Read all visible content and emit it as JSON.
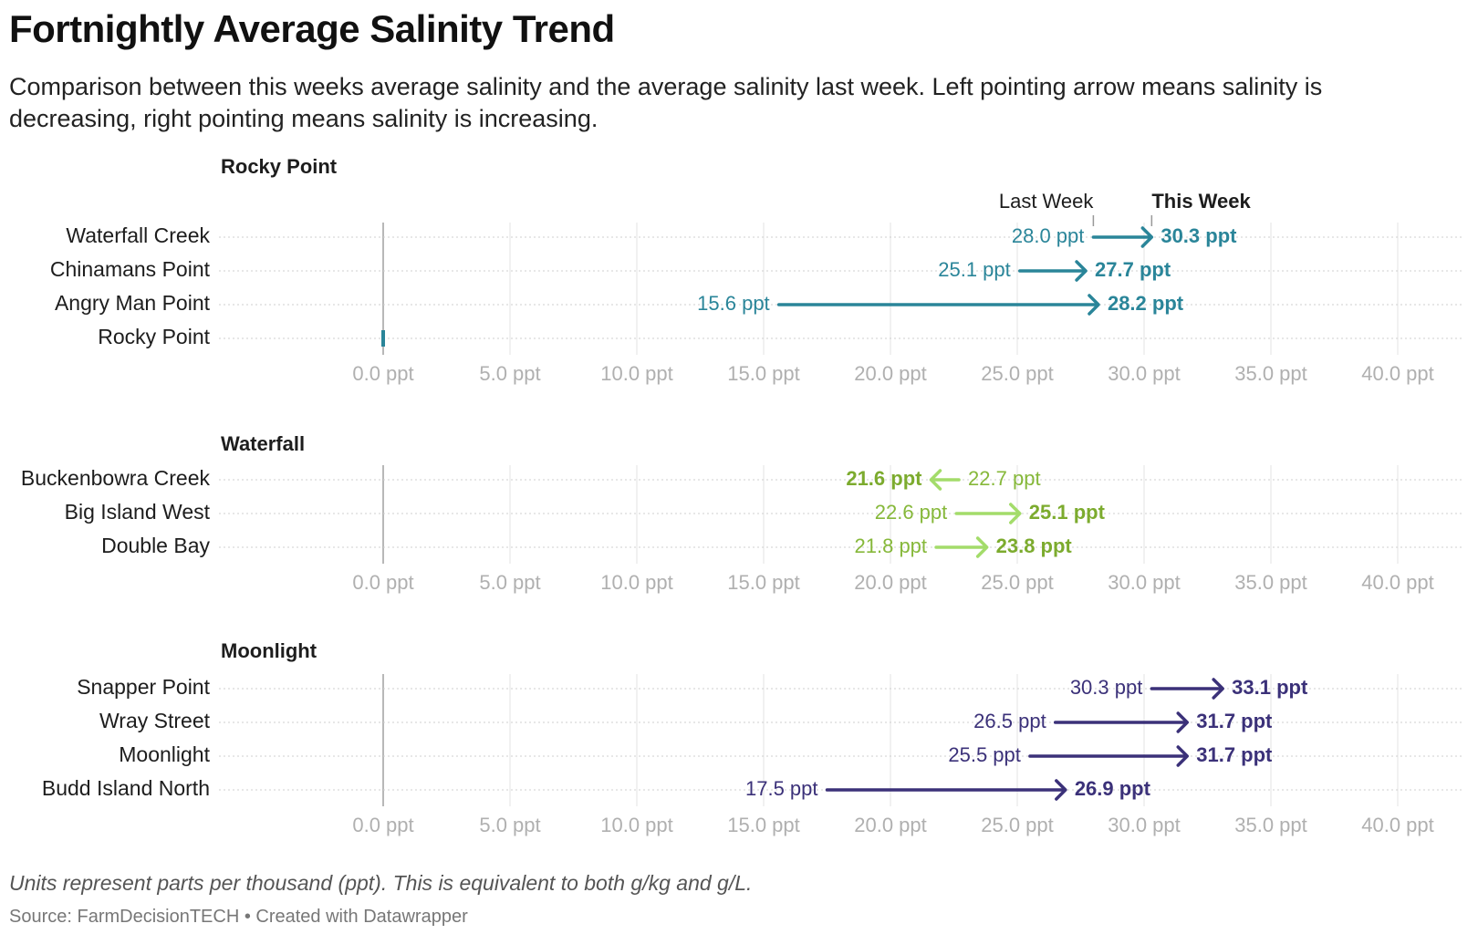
{
  "title": "Fortnightly Average Salinity Trend",
  "subtitle": "Comparison between this weeks average salinity and the average salinity last week. Left pointing arrow means salinity is decreasing, right pointing means salinity is increasing.",
  "note": "Units represent parts per thousand (ppt). This is equivalent to both g/kg and g/L.",
  "source": "Source: FarmDecisionTECH • Created with Datawrapper",
  "legend": {
    "start_label": "Last Week",
    "end_label": "This Week"
  },
  "unit_suffix": " ppt",
  "x_ticks": [
    0,
    5,
    10,
    15,
    20,
    25,
    30,
    35,
    40
  ],
  "x_tick_labels": [
    "0.0 ppt",
    "5.0 ppt",
    "10.0 ppt",
    "15.0 ppt",
    "20.0 ppt",
    "25.0 ppt",
    "30.0 ppt",
    "35.0 ppt",
    "40.0 ppt"
  ],
  "chart_data": [
    {
      "type": "arrow",
      "title": "Rocky Point",
      "color": "#2a8599",
      "label_color_start": "#2a8599",
      "label_color_end": "#2a8599",
      "xlim": [
        0,
        40
      ],
      "rows": [
        {
          "name": "Waterfall Creek",
          "last_week": 28.0,
          "this_week": 30.3,
          "last_label": "28.0 ppt",
          "this_label": "30.3 ppt"
        },
        {
          "name": "Chinamans Point",
          "last_week": 25.1,
          "this_week": 27.7,
          "last_label": "25.1 ppt",
          "this_label": "27.7 ppt"
        },
        {
          "name": "Angry Man Point",
          "last_week": 15.6,
          "this_week": 28.2,
          "last_label": "15.6 ppt",
          "this_label": "28.2 ppt"
        },
        {
          "name": "Rocky Point",
          "last_week": 0,
          "this_week": 0,
          "last_label": "",
          "this_label": ""
        }
      ]
    },
    {
      "type": "arrow",
      "title": "Waterfall",
      "color": "#a3dc6a",
      "label_color_start": "#86b83a",
      "label_color_end": "#7cab2e",
      "xlim": [
        0,
        40
      ],
      "rows": [
        {
          "name": "Buckenbowra Creek",
          "last_week": 22.7,
          "this_week": 21.6,
          "last_label": "22.7 ppt",
          "this_label": "21.6 ppt"
        },
        {
          "name": "Big Island West",
          "last_week": 22.6,
          "this_week": 25.1,
          "last_label": "22.6 ppt",
          "this_label": "25.1 ppt"
        },
        {
          "name": "Double Bay",
          "last_week": 21.8,
          "this_week": 23.8,
          "last_label": "21.8 ppt",
          "this_label": "23.8 ppt"
        }
      ]
    },
    {
      "type": "arrow",
      "title": "Moonlight",
      "color": "#3b3179",
      "label_color_start": "#3b3179",
      "label_color_end": "#3b3179",
      "xlim": [
        0,
        40
      ],
      "rows": [
        {
          "name": "Snapper Point",
          "last_week": 30.3,
          "this_week": 33.1,
          "last_label": "30.3 ppt",
          "this_label": "33.1 ppt"
        },
        {
          "name": "Wray Street",
          "last_week": 26.5,
          "this_week": 31.7,
          "last_label": "26.5 ppt",
          "this_label": "31.7 ppt"
        },
        {
          "name": "Moonlight",
          "last_week": 25.5,
          "this_week": 31.7,
          "last_label": "25.5 ppt",
          "this_label": "31.7 ppt"
        },
        {
          "name": "Budd Island North",
          "last_week": 17.5,
          "this_week": 26.9,
          "last_label": "17.5 ppt",
          "this_label": "26.9 ppt"
        }
      ]
    }
  ]
}
